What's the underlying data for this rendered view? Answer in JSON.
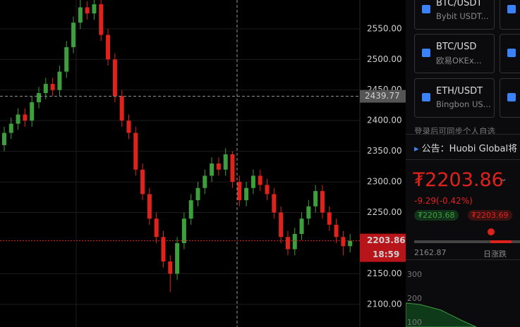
{
  "chart_data": {
    "type": "candlestick",
    "open": [
      2360,
      2380,
      2395,
      2410,
      2400,
      2430,
      2445,
      2460,
      2450,
      2480,
      2520,
      2560,
      2585,
      2575,
      2590,
      2540,
      2500,
      2440,
      2400,
      2380,
      2320,
      2280,
      2240,
      2210,
      2170,
      2150,
      2200,
      2240,
      2270,
      2290,
      2310,
      2330,
      2320,
      2345,
      2300,
      2270,
      2290,
      2310,
      2295,
      2280,
      2250,
      2210,
      2190,
      2215,
      2240,
      2260,
      2285,
      2250,
      2230,
      2210,
      2195
    ],
    "high": [
      2390,
      2405,
      2420,
      2420,
      2440,
      2455,
      2470,
      2470,
      2490,
      2530,
      2570,
      2600,
      2595,
      2600,
      2600,
      2550,
      2510,
      2450,
      2410,
      2390,
      2330,
      2290,
      2250,
      2220,
      2180,
      2210,
      2250,
      2280,
      2300,
      2320,
      2340,
      2340,
      2355,
      2350,
      2310,
      2300,
      2320,
      2320,
      2305,
      2290,
      2260,
      2220,
      2225,
      2250,
      2270,
      2295,
      2295,
      2260,
      2240,
      2220,
      2215
    ],
    "low": [
      2350,
      2370,
      2385,
      2390,
      2390,
      2420,
      2435,
      2440,
      2440,
      2470,
      2510,
      2550,
      2565,
      2565,
      2530,
      2490,
      2430,
      2390,
      2370,
      2310,
      2270,
      2230,
      2200,
      2160,
      2120,
      2140,
      2190,
      2230,
      2260,
      2280,
      2300,
      2310,
      2310,
      2290,
      2260,
      2260,
      2280,
      2285,
      2270,
      2240,
      2200,
      2180,
      2180,
      2205,
      2230,
      2250,
      2240,
      2220,
      2200,
      2180,
      2185
    ],
    "close": [
      2380,
      2395,
      2410,
      2400,
      2430,
      2445,
      2460,
      2450,
      2480,
      2520,
      2560,
      2585,
      2575,
      2590,
      2540,
      2500,
      2440,
      2400,
      2380,
      2320,
      2280,
      2240,
      2210,
      2170,
      2150,
      2200,
      2240,
      2270,
      2290,
      2310,
      2330,
      2320,
      2345,
      2300,
      2270,
      2290,
      2310,
      2295,
      2280,
      2250,
      2210,
      2190,
      2215,
      2240,
      2260,
      2285,
      2250,
      2230,
      2210,
      2195,
      2203.86
    ],
    "up_color": "#3c9e3c",
    "down_color": "#e0221c",
    "ylim": [
      2063,
      2597
    ],
    "yticks": [
      {
        "value": 2100,
        "label": "2100.00"
      },
      {
        "value": 2150,
        "label": "2150.00"
      },
      {
        "value": 2250,
        "label": "2250.00"
      },
      {
        "value": 2300,
        "label": "2300.00"
      },
      {
        "value": 2350,
        "label": "2350.00"
      },
      {
        "value": 2400,
        "label": "2400.00"
      },
      {
        "value": 2450,
        "label": "2450.00"
      },
      {
        "value": 2500,
        "label": "2500.00"
      },
      {
        "value": 2550,
        "label": "2550.00"
      }
    ],
    "grid": true,
    "crosshair_price": 2439.77,
    "last_price": 2203.86,
    "countdown": "18:59"
  },
  "panel": {
    "pairs": [
      {
        "symbol": "BTC/USDT",
        "exchange": "Bybit USDT..."
      },
      {
        "symbol": "BTC/USD",
        "exchange": "欧易OKEx..."
      },
      {
        "symbol": "ETH/USDT",
        "exchange": "Bingbon US..."
      }
    ],
    "login_hint": "登录后可同步个人自选",
    "notice": "公告：Huobi Global将",
    "price": "₮2203.86",
    "change": "-9.29(-0.42%)",
    "bid": "₮2203.68",
    "ask": "₮2203.69",
    "day_low": "2162.87",
    "day_range": "日涨跌",
    "depth_ticks": [
      "300",
      "200",
      "100"
    ]
  }
}
